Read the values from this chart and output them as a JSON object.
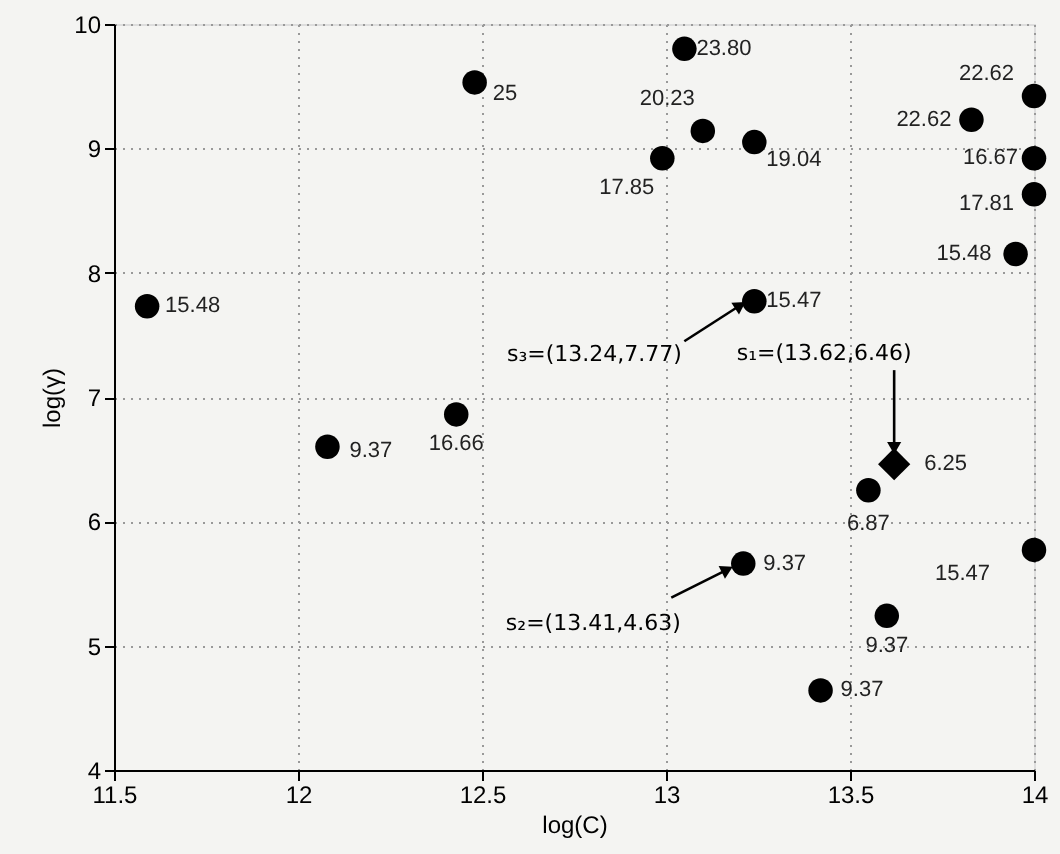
{
  "chart_data": {
    "type": "scatter",
    "xlabel": "log(C)",
    "ylabel": "log(γ)",
    "xlim": [
      11.5,
      14
    ],
    "ylim": [
      4,
      10
    ],
    "xticks": [
      11.5,
      12,
      12.5,
      13,
      13.5,
      14
    ],
    "yticks": [
      4,
      5,
      6,
      7,
      8,
      9,
      10
    ],
    "grid": true,
    "series": [
      {
        "color": "#000000",
        "marker": "circle",
        "x": [
          11.59,
          12.08,
          12.43,
          12.48,
          13.05,
          13.1,
          12.99,
          13.24,
          13.24,
          13.83,
          14.0,
          14.0,
          14.0,
          13.95,
          13.55,
          13.21,
          13.6,
          13.42,
          14.0
        ],
        "values": [
          7.73,
          6.6,
          6.86,
          9.53,
          9.8,
          9.14,
          8.92,
          9.05,
          7.77,
          9.23,
          9.42,
          8.92,
          8.63,
          8.15,
          6.25,
          5.66,
          5.24,
          4.64,
          5.77
        ]
      },
      {
        "color": "#000000",
        "marker": "diamond",
        "x": [
          13.62
        ],
        "values": [
          6.46
        ]
      }
    ],
    "annotations": [
      {
        "text": "s₃=(13.24,7.77)",
        "x": 13.24,
        "y": 7.77
      },
      {
        "text": "s₁=(13.62,6.46)",
        "x": 13.62,
        "y": 6.46
      },
      {
        "text": "s₂=(13.41,4.63)",
        "x": 13.21,
        "y": 5.66
      },
      {
        "text": "15.48",
        "x": 11.59,
        "y": 7.73
      },
      {
        "text": "9.37",
        "x": 12.08,
        "y": 6.6
      },
      {
        "text": "16.66",
        "x": 12.43,
        "y": 6.86
      },
      {
        "text": "25",
        "x": 12.48,
        "y": 9.53
      },
      {
        "text": "23.80",
        "x": 13.05,
        "y": 9.8
      },
      {
        "text": "20.23",
        "x": 13.1,
        "y": 9.14
      },
      {
        "text": "17.85",
        "x": 12.99,
        "y": 8.92
      },
      {
        "text": "19.04",
        "x": 13.24,
        "y": 9.05
      },
      {
        "text": "15.47",
        "x": 13.24,
        "y": 7.77
      },
      {
        "text": "22.62",
        "x": 13.83,
        "y": 9.23
      },
      {
        "text": "22.62",
        "x": 14.0,
        "y": 9.42
      },
      {
        "text": "16.67",
        "x": 14.0,
        "y": 8.92
      },
      {
        "text": "17.81",
        "x": 14.0,
        "y": 8.63
      },
      {
        "text": "15.48",
        "x": 13.95,
        "y": 8.15
      },
      {
        "text": "6.87",
        "x": 13.55,
        "y": 6.25
      },
      {
        "text": "9.37",
        "x": 13.21,
        "y": 5.66
      },
      {
        "text": "9.37",
        "x": 13.6,
        "y": 5.24
      },
      {
        "text": "9.37",
        "x": 13.42,
        "y": 4.64
      },
      {
        "text": "15.47",
        "x": 14.0,
        "y": 5.77
      },
      {
        "text": "6.25",
        "x": 13.62,
        "y": 6.46
      }
    ]
  }
}
